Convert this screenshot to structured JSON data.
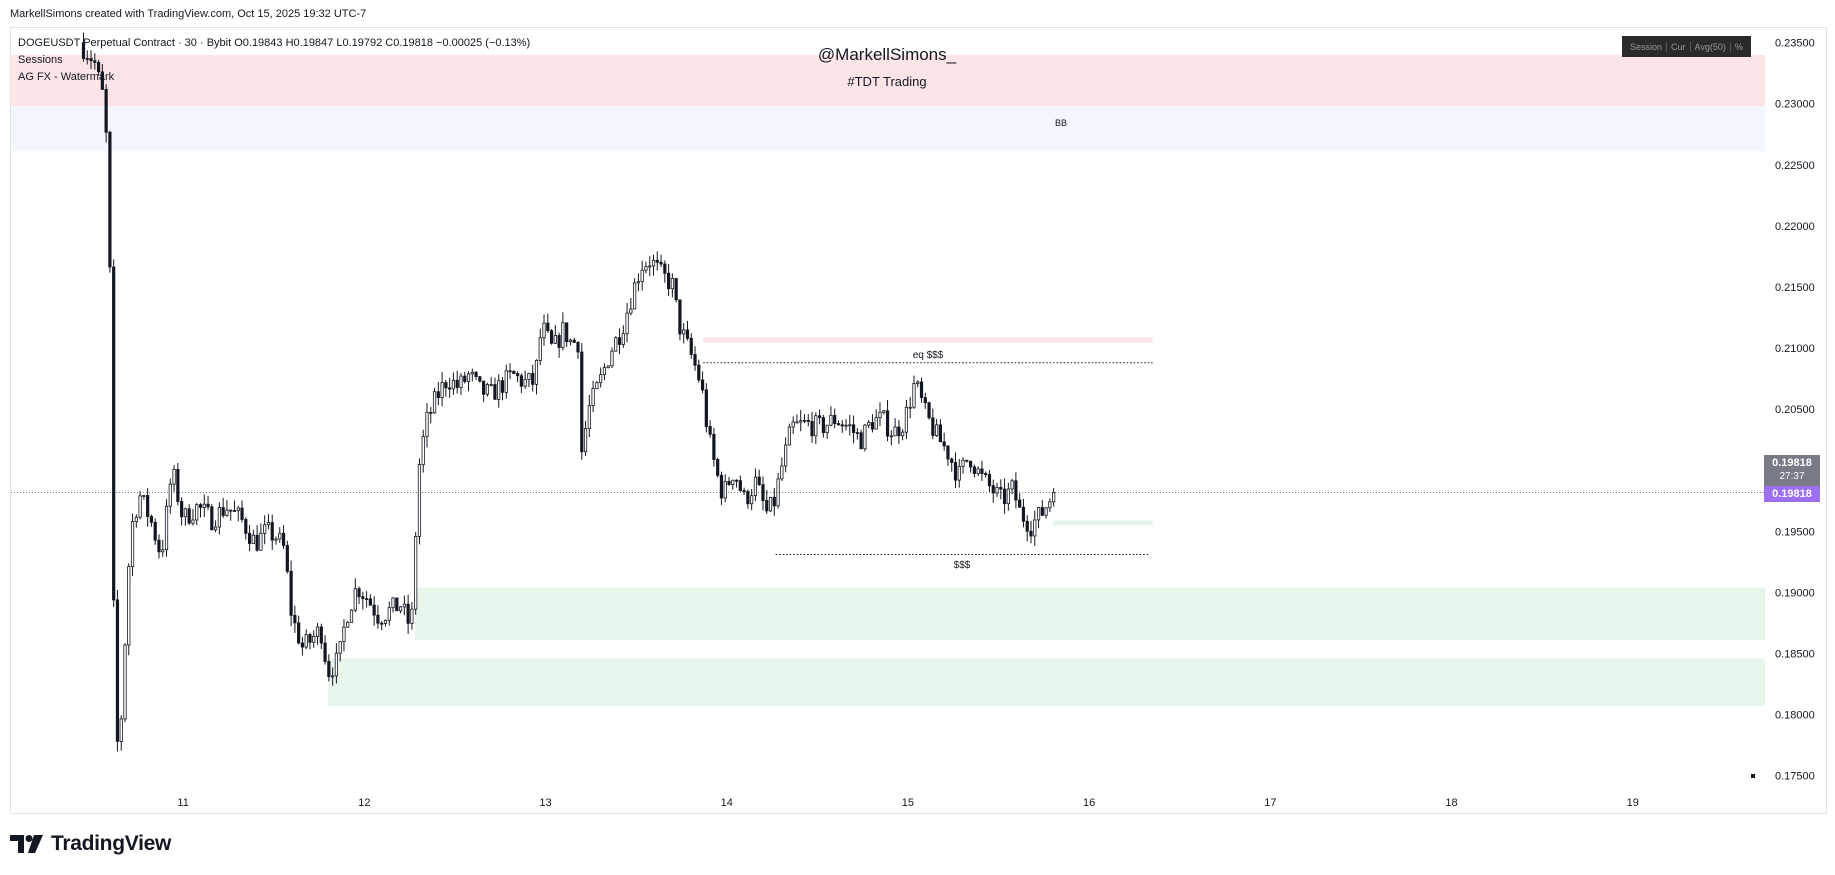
{
  "credit": "MarkellSimons created with TradingView.com, Oct 15, 2025 19:32 UTC-7",
  "legend": {
    "symbol_line": "DOGEUSDT Perpetual Contract · 30 · Bybit  O0.19843  H0.19847  L0.19792  C0.19818  −0.00025 (−0.13%)",
    "indicator1": "Sessions",
    "indicator2": "AG FX - Watermark"
  },
  "watermark": {
    "handle": "@MarkellSimons_",
    "tag": "#TDT Trading"
  },
  "annotations": {
    "bb": "BB",
    "eq": "eq $$$",
    "ssl": "$$$"
  },
  "session_box": [
    "Session",
    "Cur",
    "Avg(50)",
    "%"
  ],
  "price_tag": {
    "price": "0.19818",
    "countdown": "27:37",
    "price2": "0.19818"
  },
  "brand": "TradingView",
  "colors": {
    "zone_red": "#fde4e6",
    "zone_blue": "#f3f7fd",
    "zone_green": "#e8f5ea",
    "candle": "#131722",
    "tag_gray": "#787b86",
    "tag_purple": "#9c6ff5"
  },
  "chart_data": {
    "type": "candlestick",
    "symbol": "DOGEUSDT",
    "timeframe": "30",
    "exchange": "Bybit",
    "yaxis": {
      "ticks": [
        0.235,
        0.23,
        0.225,
        0.22,
        0.215,
        0.21,
        0.205,
        0.2,
        0.195,
        0.19,
        0.185,
        0.18,
        0.175
      ],
      "tick_labels": [
        "0.23500",
        "0.23000",
        "0.22500",
        "0.22000",
        "0.21500",
        "0.21000",
        "0.20500",
        "0.20000",
        "0.19500",
        "0.19000",
        "0.18500",
        "0.18000",
        "0.17500"
      ],
      "range": [
        0.1735,
        0.2362
      ]
    },
    "xaxis": {
      "tick_labels": [
        "11",
        "12",
        "13",
        "14",
        "15",
        "16",
        "17",
        "18",
        "19"
      ],
      "tick_days": [
        11,
        12,
        13,
        14,
        15,
        16,
        17,
        18,
        19
      ],
      "range_days": [
        10.05,
        19.73
      ]
    },
    "current_price": 0.19818,
    "zones": [
      {
        "color": "red",
        "from_day": 10.05,
        "to_day": 19.73,
        "low": 0.2298,
        "high": 0.234
      },
      {
        "color": "blue",
        "from_day": 10.05,
        "to_day": 19.73,
        "low": 0.2261,
        "high": 0.2298,
        "label": "BB"
      },
      {
        "color": "red",
        "from_day": 13.87,
        "to_day": 16.35,
        "low": 0.21045,
        "high": 0.21085
      },
      {
        "color": "green",
        "from_day": 12.28,
        "to_day": 19.73,
        "low": 0.1861,
        "high": 0.1904
      },
      {
        "color": "green",
        "from_day": 11.8,
        "to_day": 19.73,
        "low": 0.1807,
        "high": 0.1846
      },
      {
        "color": "green",
        "from_day": 15.8,
        "to_day": 16.35,
        "low": 0.1955,
        "high": 0.1959
      }
    ],
    "levels": [
      {
        "price": 0.2088,
        "from_day": 13.87,
        "to_day": 16.35,
        "label": "eq $$$",
        "style": "dotted"
      },
      {
        "price": 0.1931,
        "from_day": 14.27,
        "to_day": 16.33,
        "label": "$$$",
        "style": "dotted"
      }
    ],
    "path": [
      [
        10.45,
        0.235
      ],
      [
        10.53,
        0.2335
      ],
      [
        10.58,
        0.2305
      ],
      [
        10.6,
        0.2265
      ],
      [
        10.62,
        0.214
      ],
      [
        10.64,
        0.185
      ],
      [
        10.66,
        0.177
      ],
      [
        10.68,
        0.18
      ],
      [
        10.7,
        0.186
      ],
      [
        10.73,
        0.195
      ],
      [
        10.78,
        0.198
      ],
      [
        10.84,
        0.196
      ],
      [
        10.9,
        0.193
      ],
      [
        10.96,
        0.2
      ],
      [
        11.02,
        0.196
      ],
      [
        11.1,
        0.197
      ],
      [
        11.18,
        0.196
      ],
      [
        11.26,
        0.197
      ],
      [
        11.34,
        0.196
      ],
      [
        11.42,
        0.194
      ],
      [
        11.48,
        0.195
      ],
      [
        11.54,
        0.1945
      ],
      [
        11.58,
        0.1935
      ],
      [
        11.62,
        0.188
      ],
      [
        11.68,
        0.1855
      ],
      [
        11.72,
        0.186
      ],
      [
        11.78,
        0.187
      ],
      [
        11.82,
        0.1835
      ],
      [
        11.88,
        0.1845
      ],
      [
        11.92,
        0.188
      ],
      [
        11.98,
        0.1905
      ],
      [
        12.04,
        0.1895
      ],
      [
        12.1,
        0.188
      ],
      [
        12.16,
        0.1885
      ],
      [
        12.22,
        0.189
      ],
      [
        12.28,
        0.187
      ],
      [
        12.32,
        0.2
      ],
      [
        12.36,
        0.2038
      ],
      [
        12.42,
        0.206
      ],
      [
        12.48,
        0.2075
      ],
      [
        12.54,
        0.2068
      ],
      [
        12.6,
        0.2078
      ],
      [
        12.66,
        0.2065
      ],
      [
        12.72,
        0.2062
      ],
      [
        12.78,
        0.207
      ],
      [
        12.84,
        0.2078
      ],
      [
        12.9,
        0.2072
      ],
      [
        12.96,
        0.2072
      ],
      [
        13.0,
        0.2118
      ],
      [
        13.06,
        0.2098
      ],
      [
        13.12,
        0.2115
      ],
      [
        13.16,
        0.2105
      ],
      [
        13.2,
        0.2105
      ],
      [
        13.22,
        0.2015
      ],
      [
        13.26,
        0.205
      ],
      [
        13.32,
        0.2072
      ],
      [
        13.38,
        0.2098
      ],
      [
        13.44,
        0.2115
      ],
      [
        13.5,
        0.2145
      ],
      [
        13.55,
        0.2168
      ],
      [
        13.6,
        0.2172
      ],
      [
        13.66,
        0.216
      ],
      [
        13.72,
        0.2152
      ],
      [
        13.76,
        0.2118
      ],
      [
        13.8,
        0.2103
      ],
      [
        13.84,
        0.2088
      ],
      [
        13.88,
        0.207
      ],
      [
        13.92,
        0.2028
      ],
      [
        13.96,
        0.2
      ],
      [
        14.0,
        0.198
      ],
      [
        14.06,
        0.2
      ],
      [
        14.12,
        0.1975
      ],
      [
        14.18,
        0.199
      ],
      [
        14.24,
        0.1965
      ],
      [
        14.28,
        0.1972
      ],
      [
        14.32,
        0.2
      ],
      [
        14.38,
        0.2035
      ],
      [
        14.46,
        0.2038
      ],
      [
        14.54,
        0.2035
      ],
      [
        14.62,
        0.2042
      ],
      [
        14.7,
        0.2035
      ],
      [
        14.76,
        0.2025
      ],
      [
        14.82,
        0.204
      ],
      [
        14.88,
        0.2042
      ],
      [
        14.94,
        0.203
      ],
      [
        15.0,
        0.204
      ],
      [
        15.06,
        0.2072
      ],
      [
        15.12,
        0.2045
      ],
      [
        15.18,
        0.2028
      ],
      [
        15.24,
        0.2015
      ],
      [
        15.3,
        0.1995
      ],
      [
        15.36,
        0.2012
      ],
      [
        15.42,
        0.1995
      ],
      [
        15.48,
        0.1985
      ],
      [
        15.54,
        0.1975
      ],
      [
        15.6,
        0.1985
      ],
      [
        15.64,
        0.1965
      ],
      [
        15.7,
        0.1955
      ],
      [
        15.76,
        0.1965
      ],
      [
        15.8,
        0.1975
      ],
      [
        15.82,
        0.1982
      ]
    ]
  }
}
